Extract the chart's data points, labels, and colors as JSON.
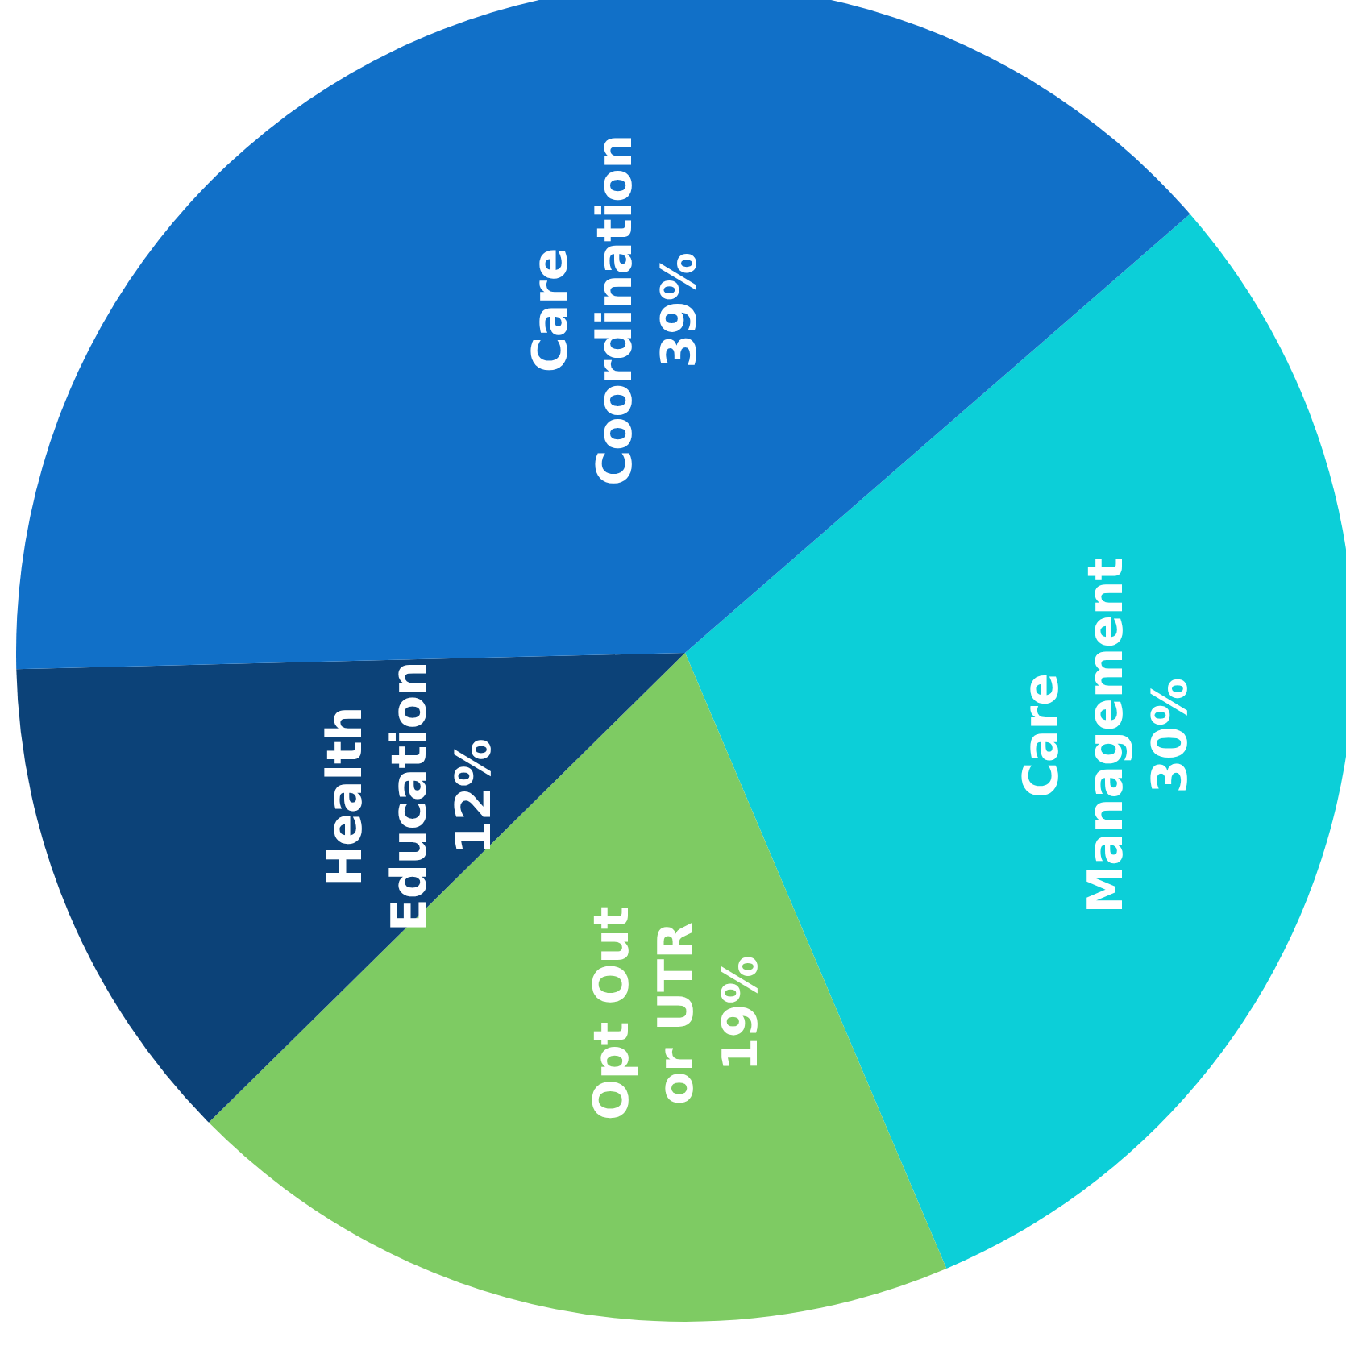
{
  "chart_data": {
    "type": "pie",
    "categories": [
      "Care Management",
      "Opt Out or UTR",
      "Health Education",
      "Care Coordination"
    ],
    "values": [
      30,
      19,
      12,
      39
    ],
    "value_labels": [
      "30%",
      "19%",
      "12%",
      "39%"
    ],
    "colors": [
      "#0ccfd8",
      "#7ecb63",
      "#0c4278",
      "#1170c8"
    ]
  }
}
